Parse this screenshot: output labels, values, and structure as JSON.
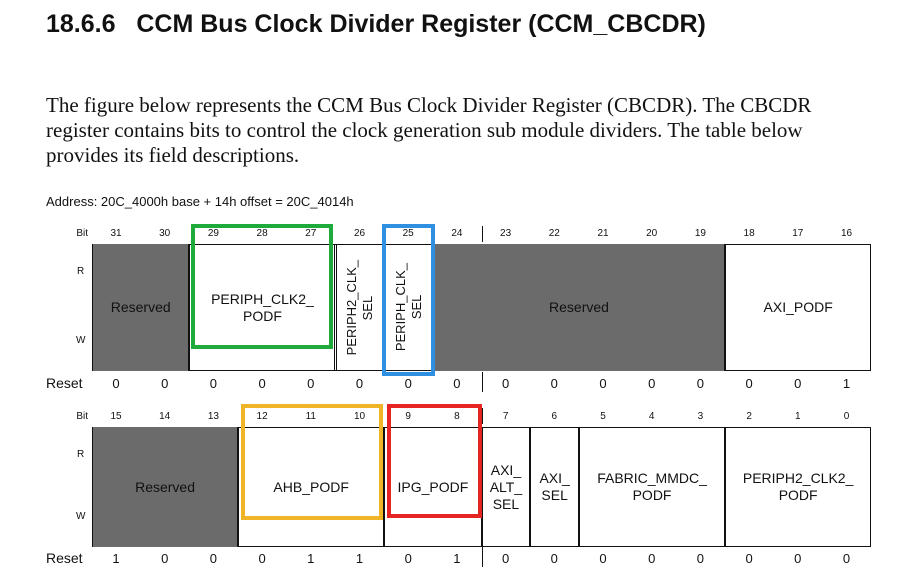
{
  "heading": {
    "number": "18.6.6",
    "title": "CCM Bus Clock Divider Register (CCM_CBCDR)"
  },
  "intro_text": "The figure below represents the CCM Bus Clock Divider Register (CBCDR). The CBCDR register contains bits to control the clock generation sub module dividers. The table below provides its field descriptions.",
  "address_line": "Address: 20C_4000h base + 14h offset = 20C_4014h",
  "labels": {
    "bit": "Bit",
    "read": "R",
    "write": "W",
    "reset": "Reset"
  },
  "upper": {
    "bits": [
      "31",
      "30",
      "29",
      "28",
      "27",
      "26",
      "25",
      "24",
      "23",
      "22",
      "21",
      "20",
      "19",
      "18",
      "17",
      "16"
    ],
    "fields": [
      {
        "name": "Reserved",
        "span": "31-30",
        "reserved": true
      },
      {
        "name": "PERIPH_CLK2_\nPODF",
        "span": "29-27",
        "reserved": false
      },
      {
        "name": "PERIPH2_CLK_\nSEL",
        "span": "26",
        "reserved": false
      },
      {
        "name": "PERIPH_CLK_\nSEL",
        "span": "25",
        "reserved": false
      },
      {
        "name": "Reserved",
        "span": "24-19",
        "reserved": true
      },
      {
        "name": "AXI_PODF",
        "span": "18-16",
        "reserved": false
      }
    ],
    "reset": [
      "0",
      "0",
      "0",
      "0",
      "0",
      "0",
      "0",
      "0",
      "0",
      "0",
      "0",
      "0",
      "0",
      "0",
      "0",
      "1"
    ]
  },
  "lower": {
    "bits": [
      "15",
      "14",
      "13",
      "12",
      "11",
      "10",
      "9",
      "8",
      "7",
      "6",
      "5",
      "4",
      "3",
      "2",
      "1",
      "0"
    ],
    "fields": [
      {
        "name": "Reserved",
        "span": "15-13",
        "reserved": true
      },
      {
        "name": "AHB_PODF",
        "span": "12-10",
        "reserved": false
      },
      {
        "name": "IPG_PODF",
        "span": "9-8",
        "reserved": false
      },
      {
        "name": "AXI_\nALT_\nSEL",
        "span": "7",
        "reserved": false
      },
      {
        "name": "AXI_\nSEL",
        "span": "6",
        "reserved": false
      },
      {
        "name": "FABRIC_MMDC_\nPODF",
        "span": "5-3",
        "reserved": false
      },
      {
        "name": "PERIPH2_CLK2_\nPODF",
        "span": "2-0",
        "reserved": false
      }
    ],
    "reset": [
      "1",
      "0",
      "0",
      "0",
      "1",
      "1",
      "0",
      "1",
      "0",
      "0",
      "0",
      "0",
      "0",
      "0",
      "0",
      "0"
    ]
  },
  "highlight_colors": {
    "periph_clk2_podf": "#1faa3c",
    "periph_clk_sel": "#2f8fe0",
    "ahb_podf": "#f0b429",
    "ipg_podf": "#e52521"
  }
}
